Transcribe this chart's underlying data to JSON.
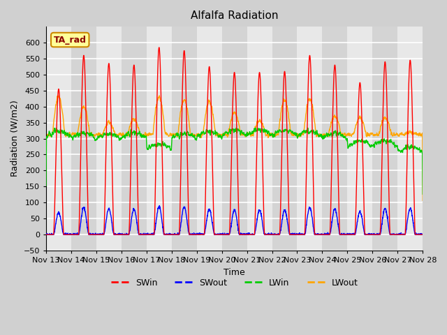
{
  "title": "Alfalfa Radiation",
  "xlabel": "Time",
  "ylabel": "Radiation (W/m2)",
  "ylim": [
    -50,
    650
  ],
  "yticks": [
    -50,
    0,
    50,
    100,
    150,
    200,
    250,
    300,
    350,
    400,
    450,
    500,
    550,
    600
  ],
  "x_tick_labels": [
    "Nov 13",
    "Nov 14",
    "Nov 15",
    "Nov 16",
    "Nov 17",
    "Nov 18",
    "Nov 19",
    "Nov 20",
    "Nov 21",
    "Nov 22",
    "Nov 23",
    "Nov 24",
    "Nov 25",
    "Nov 26",
    "Nov 27",
    "Nov 28"
  ],
  "colors": {
    "SWin": "#ff0000",
    "SWout": "#0000ff",
    "LWin": "#00cc00",
    "LWout": "#ffa500"
  },
  "annotation_text": "TA_rad",
  "annotation_bbox_color": "#ffff99",
  "annotation_border_color": "#cc8800",
  "linewidth": 1.0,
  "num_days": 15,
  "points_per_day": 144
}
